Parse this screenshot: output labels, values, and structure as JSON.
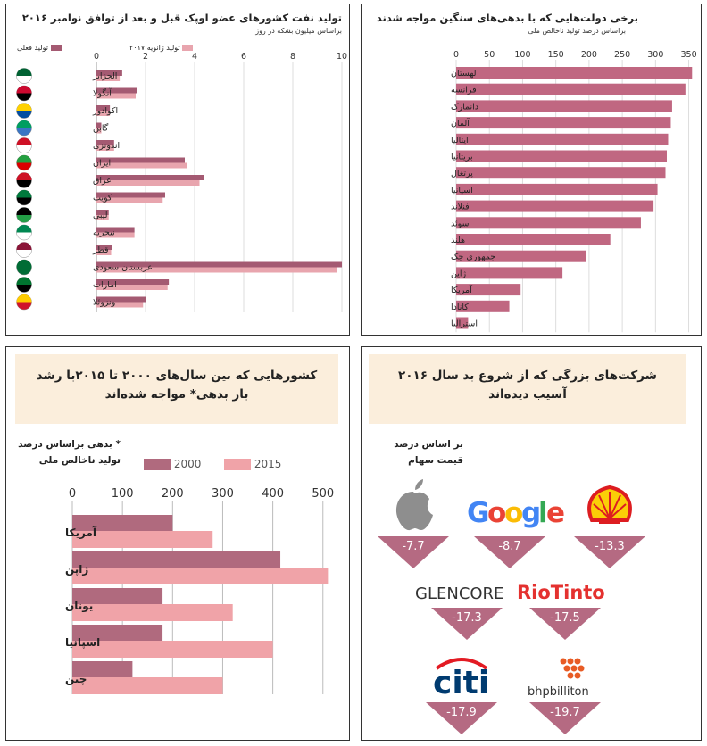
{
  "chart_data": [
    {
      "type": "bar",
      "title": "تولید نفت کشورهای عضو اوپک قبل و بعد از توافق نوامبر ۲۰۱۶",
      "subtitle": "براساس میلیون بشکه در روز",
      "categories": [
        "الجزایر",
        "آنگولا",
        "اکوادور",
        "گابن",
        "اندونزی",
        "ایران",
        "عراق",
        "کویت",
        "لیبی",
        "نیجریه",
        "قطر",
        "عربستان سعودی",
        "امارات",
        "ونزوئلا"
      ],
      "series": [
        {
          "name": "تولید فعلی",
          "color": "#a45a72",
          "values": [
            1.05,
            1.65,
            0.55,
            0.2,
            0.72,
            3.6,
            4.4,
            2.8,
            0.5,
            1.55,
            0.62,
            10.0,
            2.95,
            2.0
          ]
        },
        {
          "name": "تولید ژانویه ۲۰۱۷",
          "color": "#e8a5ae",
          "values": [
            0.95,
            1.6,
            0.55,
            0.2,
            0.72,
            3.7,
            4.2,
            2.7,
            0.5,
            1.55,
            0.6,
            9.8,
            2.9,
            1.9
          ]
        }
      ],
      "xticks": [
        "0",
        "2",
        "4",
        "6",
        "8",
        "10"
      ],
      "xlim": [
        0,
        10
      ],
      "legend_position": "top"
    },
    {
      "type": "bar",
      "title": "برخی دولت‌هایی که با بدهی‌های سنگین مواجه شدند",
      "subtitle": "براساس درصد تولید ناخالص ملی",
      "categories": [
        "لهستان",
        "فرانسه",
        "دانمارک",
        "آلمان",
        "ایتالیا",
        "بریتانیا",
        "پرتغال",
        "اسپانیا",
        "فنلاند",
        "سوئد",
        "هلند",
        "جمهوری چک",
        "ژاپن",
        "آمریکا",
        "کانادا",
        "استرالیا"
      ],
      "series": [
        {
          "name": "",
          "color": "#c06781",
          "values": [
            355,
            345,
            325,
            323,
            319,
            317,
            315,
            303,
            297,
            278,
            232,
            195,
            160,
            97,
            80,
            18
          ]
        }
      ],
      "xticks": [
        "0",
        "50",
        "100",
        "150",
        "200",
        "250",
        "300",
        "350"
      ],
      "xlim": [
        0,
        360
      ]
    },
    {
      "type": "bar",
      "title": "کشورهایی که بین سال‌های ۲۰۰۰ تا ۲۰۱۵با رشد بار بدهی* مواجه شده‌اند",
      "note": "* بدهی براساس درصد تولید ناخالص ملی",
      "categories": [
        "آمریکا",
        "ژاپن",
        "یونان",
        "اسپانیا",
        "چین"
      ],
      "series": [
        {
          "name": "2000",
          "color": "#b06a7e",
          "values": [
            200,
            415,
            180,
            180,
            120
          ]
        },
        {
          "name": "2015",
          "color": "#f0a3a8",
          "values": [
            280,
            510,
            320,
            400,
            300
          ]
        }
      ],
      "xticks": [
        "0",
        "100",
        "200",
        "300",
        "400",
        "500"
      ],
      "xlim": [
        0,
        520
      ],
      "legend_position": "top"
    }
  ],
  "companies_panel": {
    "title": "شرکت‌های بزرگی که از شروع بد سال ۲۰۱۶ آسیب دیده‌اند",
    "note": "بر اساس درصد قیمت سهام",
    "items": [
      {
        "name": "Shell",
        "value": "-13.3",
        "icon": "shell-logo"
      },
      {
        "name": "Google",
        "value": "-8.7",
        "icon": "google-logo"
      },
      {
        "name": "Apple",
        "value": "-7.7",
        "icon": "apple-logo"
      },
      {
        "name": "RioTinto",
        "value": "-17.5",
        "icon": "riotinto-logo"
      },
      {
        "name": "GLENCORE",
        "value": "-17.3",
        "icon": "glencore-logo"
      },
      {
        "name": "bhpbilliton",
        "value": "-19.7",
        "icon": "bhp-logo"
      },
      {
        "name": "citi",
        "value": "-17.9",
        "icon": "citi-logo"
      }
    ],
    "colors": {
      "triangle": "#b56a82",
      "google_blue": "#4285f4",
      "google_red": "#ea4335",
      "google_yellow": "#fbbc05",
      "google_green": "#34a853",
      "shell_yellow": "#fbce07",
      "shell_red": "#dd1d21",
      "rio_red": "#e4312f",
      "citi_blue": "#003b70",
      "citi_red": "#e31b23",
      "bhp_orange": "#e85b24"
    }
  }
}
